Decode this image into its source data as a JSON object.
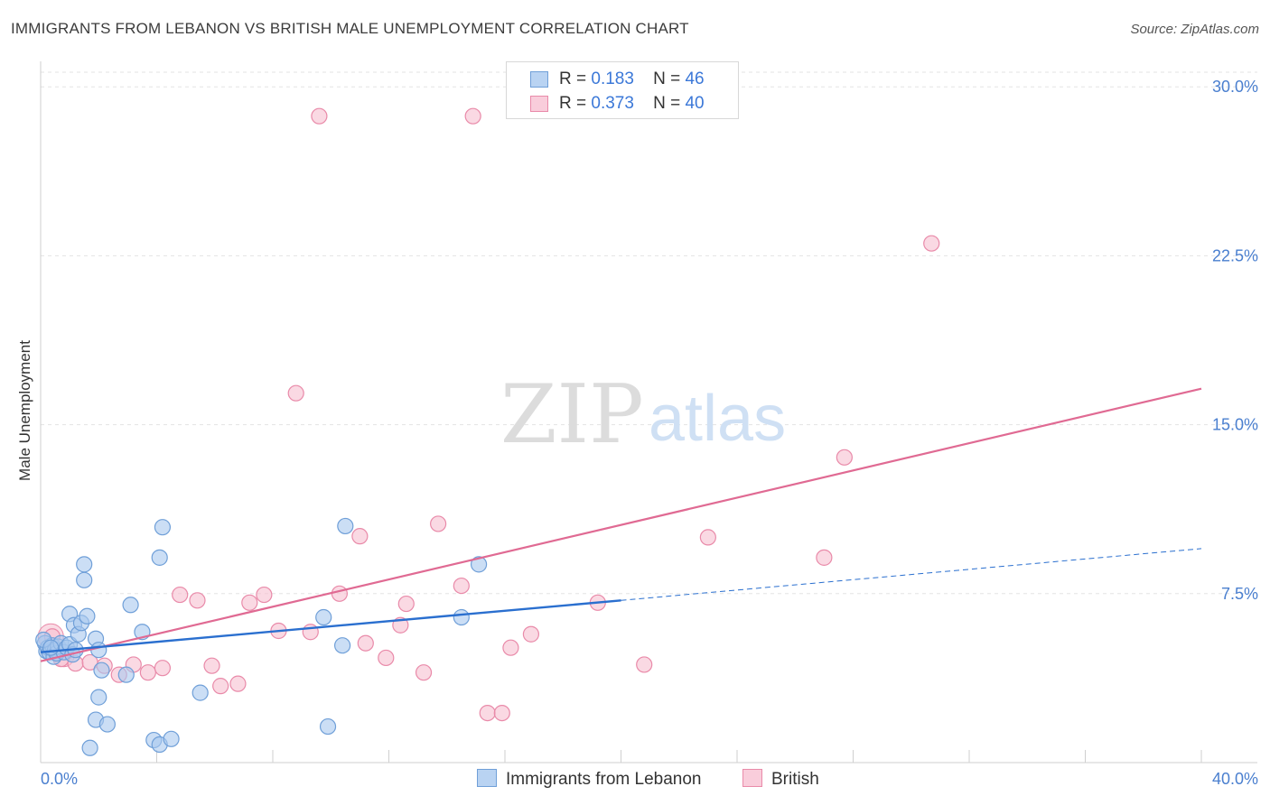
{
  "title": "IMMIGRANTS FROM LEBANON VS BRITISH MALE UNEMPLOYMENT CORRELATION CHART",
  "source": "Source: ZipAtlas.com",
  "watermark": {
    "zip": "ZIP",
    "atlas": "atlas"
  },
  "legend": {
    "rows": [
      {
        "r_label": "R =",
        "r_value": "0.183",
        "n_label": "N =",
        "n_value": "46"
      },
      {
        "r_label": "R =",
        "r_value": "0.373",
        "n_label": "N =",
        "n_value": "40"
      }
    ]
  },
  "colors": {
    "blue_fill": "#a9c8ee",
    "blue_stroke": "#6f9fd8",
    "blue_line": "#2a6fcf",
    "pink_fill": "#f6bfd0",
    "pink_stroke": "#e98aa9",
    "pink_line": "#e06a93",
    "tick_label": "#4a7fcf"
  },
  "chart_data": {
    "type": "scatter",
    "title": "IMMIGRANTS FROM LEBANON VS BRITISH MALE UNEMPLOYMENT CORRELATION CHART",
    "xlabel": "",
    "ylabel": "Male Unemployment",
    "xlim": [
      0,
      40
    ],
    "ylim": [
      0,
      30
    ],
    "x_tick_labels": [
      "0.0%",
      "40.0%"
    ],
    "y_ticks": [
      7.5,
      15.0,
      22.5,
      30.0
    ],
    "y_tick_labels": [
      "7.5%",
      "15.0%",
      "22.5%",
      "30.0%"
    ],
    "grid": true,
    "legend_position": "bottom-center",
    "series": [
      {
        "name": "Immigrants from Lebanon",
        "color": "blue",
        "R": 0.183,
        "N": 46,
        "trend": {
          "x0": 0.0,
          "y0": 4.9,
          "x_solid_end": 20.0,
          "y_solid_end": 7.2,
          "x1": 40.0,
          "y1": 9.5
        },
        "points": [
          [
            0.15,
            5.3
          ],
          [
            0.2,
            4.95
          ],
          [
            0.25,
            5.1
          ],
          [
            0.3,
            4.9
          ],
          [
            0.4,
            5.2
          ],
          [
            0.45,
            4.7
          ],
          [
            0.5,
            5.0
          ],
          [
            0.55,
            4.85
          ],
          [
            0.6,
            5.15
          ],
          [
            0.7,
            5.3
          ],
          [
            0.8,
            4.9
          ],
          [
            0.9,
            5.1
          ],
          [
            1.0,
            5.25
          ],
          [
            1.1,
            4.8
          ],
          [
            1.2,
            5.0
          ],
          [
            1.0,
            6.6
          ],
          [
            1.15,
            6.1
          ],
          [
            1.3,
            5.7
          ],
          [
            1.4,
            6.2
          ],
          [
            1.6,
            6.5
          ],
          [
            1.9,
            5.5
          ],
          [
            1.5,
            8.1
          ],
          [
            1.5,
            8.8
          ],
          [
            2.0,
            5.0
          ],
          [
            2.1,
            4.1
          ],
          [
            2.0,
            2.9
          ],
          [
            1.9,
            1.9
          ],
          [
            2.3,
            1.7
          ],
          [
            1.7,
            0.65
          ],
          [
            2.95,
            3.9
          ],
          [
            3.1,
            7.0
          ],
          [
            3.5,
            5.8
          ],
          [
            3.9,
            1.0
          ],
          [
            4.1,
            0.8
          ],
          [
            4.5,
            1.05
          ],
          [
            4.1,
            9.1
          ],
          [
            4.2,
            10.45
          ],
          [
            5.5,
            3.1
          ],
          [
            9.75,
            6.45
          ],
          [
            9.9,
            1.6
          ],
          [
            10.4,
            5.2
          ],
          [
            10.5,
            10.5
          ],
          [
            14.5,
            6.45
          ],
          [
            15.1,
            8.8
          ],
          [
            0.1,
            5.45
          ],
          [
            0.35,
            5.1
          ]
        ]
      },
      {
        "name": "British",
        "color": "pink",
        "R": 0.373,
        "N": 40,
        "trend": {
          "x0": 0.0,
          "y0": 4.5,
          "x1": 40.0,
          "y1": 16.6
        },
        "points": [
          [
            0.4,
            5.6
          ],
          [
            0.7,
            4.6
          ],
          [
            1.2,
            4.4
          ],
          [
            1.7,
            4.45
          ],
          [
            2.2,
            4.3
          ],
          [
            2.7,
            3.9
          ],
          [
            3.2,
            4.35
          ],
          [
            3.7,
            4.0
          ],
          [
            4.2,
            4.2
          ],
          [
            4.8,
            7.45
          ],
          [
            5.4,
            7.2
          ],
          [
            5.9,
            4.3
          ],
          [
            6.2,
            3.4
          ],
          [
            6.8,
            3.5
          ],
          [
            7.2,
            7.1
          ],
          [
            7.7,
            7.45
          ],
          [
            8.2,
            5.85
          ],
          [
            9.3,
            5.8
          ],
          [
            9.6,
            28.7
          ],
          [
            8.8,
            16.4
          ],
          [
            10.3,
            7.5
          ],
          [
            11.0,
            10.05
          ],
          [
            11.2,
            5.3
          ],
          [
            11.9,
            4.65
          ],
          [
            12.4,
            6.1
          ],
          [
            12.6,
            7.05
          ],
          [
            13.2,
            4.0
          ],
          [
            13.7,
            10.6
          ],
          [
            14.5,
            7.85
          ],
          [
            14.9,
            28.7
          ],
          [
            15.4,
            2.2
          ],
          [
            15.9,
            2.2
          ],
          [
            16.2,
            5.1
          ],
          [
            16.9,
            5.7
          ],
          [
            19.2,
            7.1
          ],
          [
            20.8,
            4.35
          ],
          [
            23.0,
            10.0
          ],
          [
            27.0,
            9.1
          ],
          [
            27.7,
            13.55
          ],
          [
            30.7,
            23.05
          ]
        ]
      }
    ]
  }
}
